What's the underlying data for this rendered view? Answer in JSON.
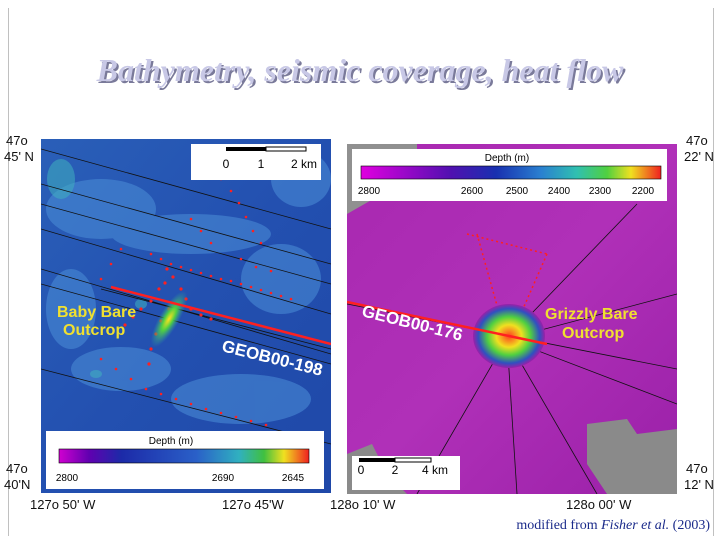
{
  "title": "Bathymetry, seismic coverage, heat flow",
  "credit": {
    "prefix": "modified from ",
    "authors": "Fisher et al.",
    "year": " (2003)"
  },
  "left_map": {
    "lat_top": [
      "47o",
      "45' N"
    ],
    "lat_bottom": [
      "47o",
      "40'N"
    ],
    "lon_left": "127o 50' W",
    "lon_right": "127o 45'W",
    "scalebar": [
      "0",
      "1",
      "2 km"
    ],
    "feature_label": [
      "Baby Bare",
      "Outcrop"
    ],
    "line_label": "GEOB00-198",
    "colorbar": {
      "title": "Depth (m)",
      "ticks": [
        "2800",
        "2690",
        "2645"
      ]
    }
  },
  "right_map": {
    "lat_top": [
      "47o",
      "22' N"
    ],
    "lat_bottom": [
      "47o",
      "12' N"
    ],
    "lon_left": "128o 10' W",
    "lon_right": "128o 00' W",
    "scalebar": [
      "0",
      "2",
      "4 km"
    ],
    "feature_label": [
      "Grizzly Bare",
      "Outcrop"
    ],
    "line_label": "GEOB00-176",
    "colorbar": {
      "title": "Depth (m)",
      "ticks": [
        "2800",
        "2600",
        "2500",
        "2400",
        "2300",
        "2200"
      ]
    }
  },
  "colors": {
    "survey_points": "#ff2020",
    "title_fill": "#c8c8e6",
    "credit": "#1a2a8a"
  }
}
